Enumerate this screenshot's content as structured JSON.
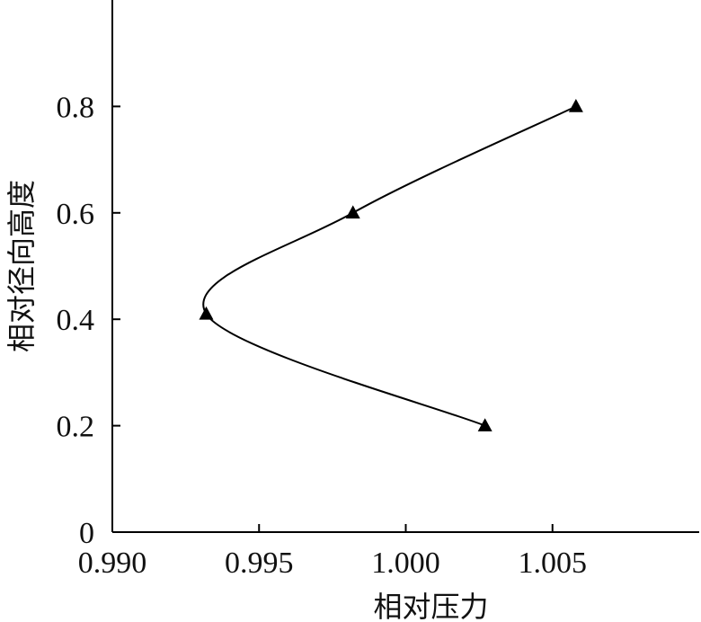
{
  "chart_data": {
    "type": "line",
    "xlabel": "相对压力",
    "ylabel": "相对径向高度",
    "xlim": [
      0.99,
      1.01
    ],
    "ylim": [
      0,
      1.0
    ],
    "x_ticks": [
      0.99,
      0.995,
      1.0,
      1.005
    ],
    "x_tick_labels": [
      "0.990",
      "0.995",
      "1.000",
      "1.005"
    ],
    "y_ticks": [
      0,
      0.2,
      0.4,
      0.6,
      0.8
    ],
    "y_tick_labels": [
      "0",
      "0.2",
      "0.4",
      "0.6",
      "0.8"
    ],
    "grid": false,
    "marker": "triangle",
    "series": [
      {
        "points": [
          {
            "x": 1.0027,
            "y": 0.2
          },
          {
            "x": 0.9932,
            "y": 0.41
          },
          {
            "x": 0.9982,
            "y": 0.6
          },
          {
            "x": 1.0058,
            "y": 0.8
          }
        ]
      }
    ]
  }
}
